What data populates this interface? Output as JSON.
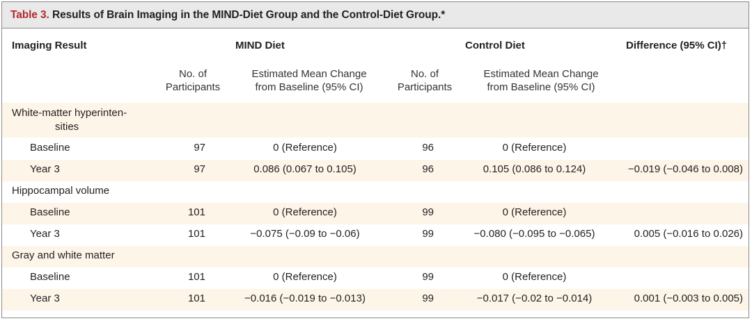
{
  "table": {
    "number": "Table 3.",
    "title": "Results of Brain Imaging in the MIND-Diet Group and the Control-Diet Group.*",
    "headers": {
      "imaging_result": "Imaging Result",
      "mind_diet": "MIND Diet",
      "control_diet": "Control Diet",
      "difference": "Difference (95% CI)†",
      "participants_line1": "No. of",
      "participants_line2": "Participants",
      "change_line1": "Estimated Mean Change",
      "change_line2": "from Baseline (95% CI)"
    },
    "sections": [
      {
        "label_line1": "White-matter hyperinten-",
        "label_line2": "sities",
        "rows": [
          {
            "label": "Baseline",
            "mind_n": "97",
            "mind_change": "0 (Reference)",
            "control_n": "96",
            "control_change": "0 (Reference)",
            "difference": ""
          },
          {
            "label": "Year 3",
            "mind_n": "97",
            "mind_change": "0.086 (0.067 to 0.105)",
            "control_n": "96",
            "control_change": "0.105 (0.086 to 0.124)",
            "difference": "−0.019 (−0.046 to 0.008)"
          }
        ]
      },
      {
        "label_line1": "Hippocampal volume",
        "rows": [
          {
            "label": "Baseline",
            "mind_n": "101",
            "mind_change": "0 (Reference)",
            "control_n": "99",
            "control_change": "0 (Reference)",
            "difference": ""
          },
          {
            "label": "Year 3",
            "mind_n": "101",
            "mind_change": "−0.075 (−0.09 to −0.06)",
            "control_n": "99",
            "control_change": "−0.080 (−0.095 to −0.065)",
            "difference": "0.005 (−0.016 to 0.026)"
          }
        ]
      },
      {
        "label_line1": "Gray and white matter",
        "rows": [
          {
            "label": "Baseline",
            "mind_n": "101",
            "mind_change": "0 (Reference)",
            "control_n": "99",
            "control_change": "0 (Reference)",
            "difference": ""
          },
          {
            "label": "Year 3",
            "mind_n": "101",
            "mind_change": "−0.016 (−0.019 to −0.013)",
            "control_n": "99",
            "control_change": "−0.017 (−0.02 to −0.014)",
            "difference": "0.001 (−0.003 to 0.005)"
          }
        ]
      }
    ]
  }
}
